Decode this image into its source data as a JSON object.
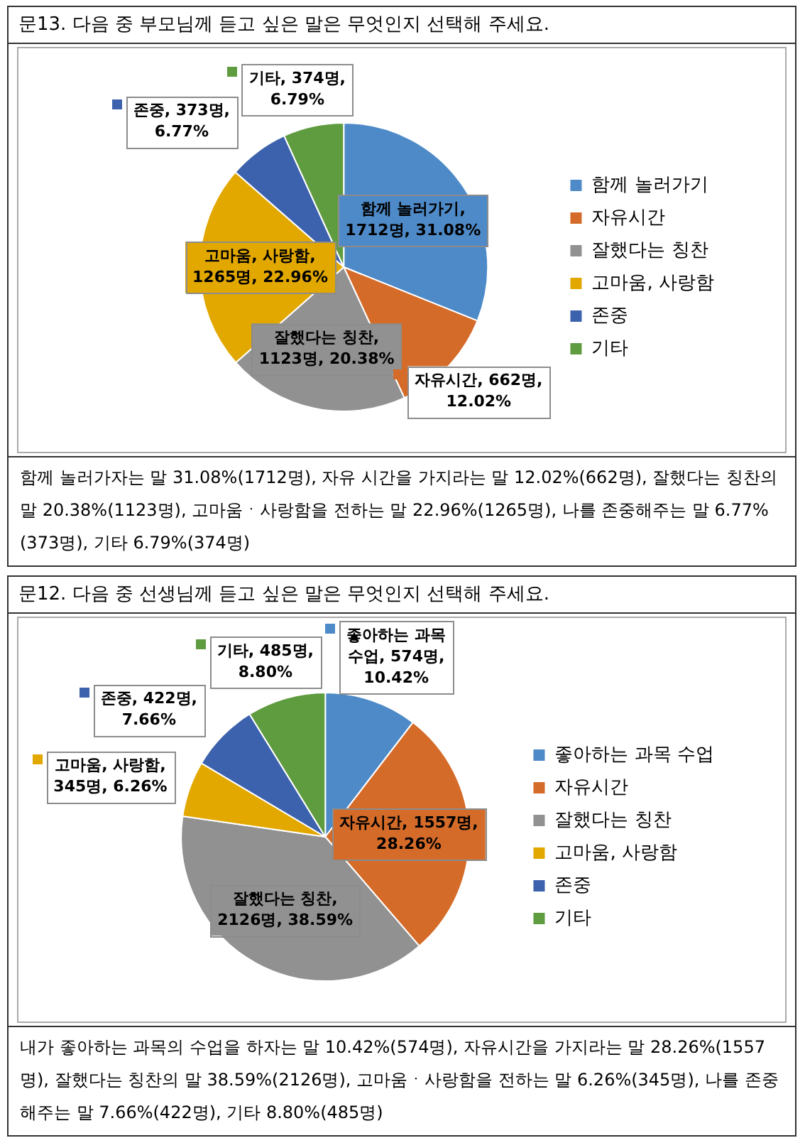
{
  "chart_data": [
    {
      "type": "pie",
      "title": "문13. 다음 중 부모님께 듣고 싶은 말은 무엇인지 선택해 주세요.",
      "categories": [
        "함께 놀러가기",
        "자유시간",
        "잘했다는 칭찬",
        "고마움, 사랑함",
        "존중",
        "기타"
      ],
      "values": [
        1712,
        662,
        1123,
        1265,
        373,
        374
      ],
      "colors": [
        "#4e8ac8",
        "#d46b29",
        "#919191",
        "#e2a800",
        "#3d62ad",
        "#5f9b3f"
      ],
      "value_labels": [
        "함께 놀러가기, 1712명, 31.08%",
        "자유시간, 662명, 12.02%",
        "잘했다는 칭찬, 1123명, 20.38%",
        "고마움, 사랑함, 1265명, 22.96%",
        "존중, 373명, 6.77%",
        "기타, 374명, 6.79%"
      ],
      "legend": "right",
      "annotations": [
        "함께 놀러가자는 말 31.08%(1712명), 자유 시간을 가지라는 말 12.02%(662명), 잘했다는 칭찬의 말 20.38%(1123명), 고마움ㆍ사랑함을 전하는 말 22.96%(1265명), 나를 존중해주는 말 6.77%(373명), 기타 6.79%(374명)"
      ]
    },
    {
      "type": "pie",
      "title": "문12. 다음 중 선생님께 듣고 싶은 말은 무엇인지 선택해 주세요.",
      "categories": [
        "좋아하는 과목 수업",
        "자유시간",
        "잘했다는 칭찬",
        "고마움, 사랑함",
        "존중",
        "기타"
      ],
      "values": [
        574,
        1557,
        2126,
        345,
        422,
        485
      ],
      "colors": [
        "#4e8ac8",
        "#d46b29",
        "#919191",
        "#e2a800",
        "#3d62ad",
        "#5f9b3f"
      ],
      "value_labels": [
        "좋아하는 과목 수업, 574명, 10.42%",
        "자유시간, 1557명, 28.26%",
        "잘했다는 칭찬, 2126명, 38.59%",
        "고마움, 사랑함, 345명, 6.26%",
        "존중, 422명, 7.66%",
        "기타, 485명, 8.80%"
      ],
      "legend": "right",
      "annotations": [
        "내가 좋아하는 과목의 수업을 하자는 말 10.42%(574명), 자유시간을 가지라는 말 28.26%(1557명), 잘했다는 칭찬의 말 38.59%(2126명), 고마움ㆍ사랑함을 전하는 말 6.26%(345명), 나를 존중해주는 말 7.66%(422명), 기타 8.80%(485명)"
      ]
    }
  ]
}
